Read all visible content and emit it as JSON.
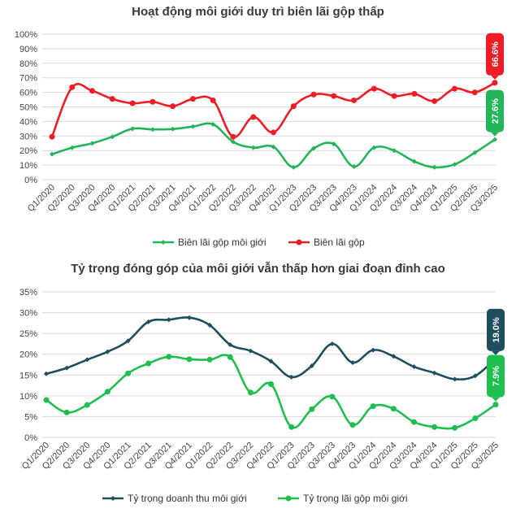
{
  "chart_data": [
    {
      "type": "line",
      "title": "Hoạt động môi giới duy trì biên lãi gộp thấp",
      "categories": [
        "Q1/2020",
        "Q2/2020",
        "Q3/2020",
        "Q4/2020",
        "Q1/2021",
        "Q2/2021",
        "Q3/2021",
        "Q4/2021",
        "Q1/2022",
        "Q2/2022",
        "Q3/2022",
        "Q4/2022",
        "Q1/2023",
        "Q2/2023",
        "Q3/2023",
        "Q4/2023",
        "Q1/2024",
        "Q2/2024",
        "Q3/2024",
        "Q4/2024",
        "Q1/2025",
        "Q2/2025",
        "Q3/2025"
      ],
      "y_ticks": [
        "0%",
        "10%",
        "20%",
        "30%",
        "40%",
        "50%",
        "60%",
        "70%",
        "80%",
        "90%",
        "100%"
      ],
      "ylim": [
        0,
        100
      ],
      "grid": true,
      "legend": "bottom",
      "series": [
        {
          "name": "Biên lãi gộp môi giới",
          "color": "#22b55a",
          "marker": "diamond",
          "values": [
            17.5,
            22,
            25,
            29.5,
            35,
            34.5,
            34.8,
            36.5,
            38,
            26,
            22,
            22.5,
            8.5,
            21.5,
            24.5,
            9,
            22,
            20,
            12.5,
            8.5,
            10.5,
            18.5,
            27.6
          ],
          "last_label": "27.6%"
        },
        {
          "name": "Biên lãi gộp",
          "color": "#ee1c24",
          "marker": "circle",
          "values": [
            29.5,
            63.5,
            61,
            55.5,
            52.5,
            53.5,
            50.5,
            55.5,
            54.5,
            29.5,
            43,
            32.5,
            50.5,
            58.5,
            57.5,
            54.5,
            62.5,
            57.5,
            59,
            54,
            62.5,
            60,
            66.6
          ],
          "last_label": "66.6%"
        }
      ]
    },
    {
      "type": "line",
      "title": "Tỷ trọng đóng góp của môi giới vẫn thấp hơn giai đoạn đỉnh cao",
      "categories": [
        "Q1/2020",
        "Q2/2020",
        "Q3/2020",
        "Q4/2020",
        "Q1/2021",
        "Q2/2021",
        "Q3/2021",
        "Q4/2021",
        "Q1/2022",
        "Q2/2022",
        "Q3/2022",
        "Q4/2022",
        "Q1/2023",
        "Q2/2023",
        "Q3/2023",
        "Q4/2023",
        "Q1/2024",
        "Q2/2024",
        "Q3/2024",
        "Q4/2024",
        "Q1/2025",
        "Q2/2025",
        "Q3/2025"
      ],
      "y_ticks": [
        "0%",
        "5%",
        "10%",
        "15%",
        "20%",
        "25%",
        "30%",
        "35%"
      ],
      "ylim": [
        0,
        35
      ],
      "grid": true,
      "legend": "bottom",
      "series": [
        {
          "name": "Tỷ trọng doanh thu môi giới",
          "color": "#1f4e5f",
          "marker": "diamond",
          "values": [
            15.3,
            16.7,
            18.7,
            20.6,
            23.2,
            27.8,
            28.3,
            28.8,
            27,
            22.3,
            20.8,
            18.3,
            14.5,
            17.2,
            22.5,
            18,
            21,
            19.5,
            17,
            15.5,
            14,
            14.8,
            19.0
          ],
          "last_label": "19.0%"
        },
        {
          "name": "Tỷ trọng lãi gộp môi giới",
          "color": "#1fbf4f",
          "marker": "circle",
          "values": [
            9,
            6,
            7.8,
            11,
            15.4,
            17.8,
            19.4,
            18.8,
            18.7,
            19.3,
            10.8,
            12.8,
            2.5,
            6.8,
            9.8,
            3,
            7.5,
            6.9,
            3.7,
            2.5,
            2.3,
            4.6,
            7.9
          ],
          "last_label": "7.9%"
        }
      ]
    }
  ]
}
